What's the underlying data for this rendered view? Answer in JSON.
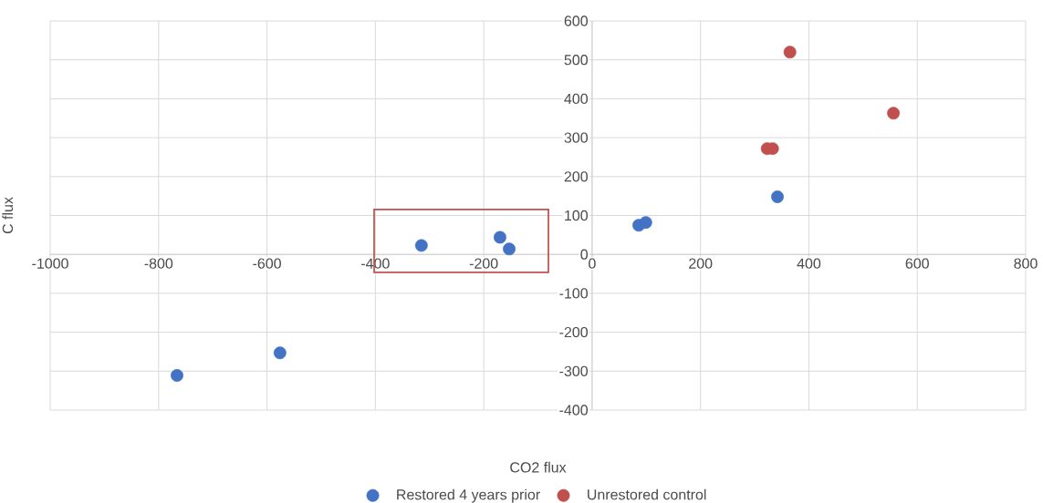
{
  "chart_data": {
    "type": "scatter",
    "xlabel": "CO2 flux",
    "ylabel": "C flux",
    "series": [
      {
        "name": "Restored 4 years prior",
        "color": "#4472c4",
        "x": [
          -766,
          -576,
          -315,
          -170,
          -153,
          86,
          99,
          342
        ],
        "values": [
          -311,
          -253,
          23,
          44,
          14,
          75,
          82,
          148
        ]
      },
      {
        "name": "Unrestored control",
        "color": "#c0504d",
        "x": [
          365,
          556,
          323,
          333
        ],
        "values": [
          520,
          363,
          272,
          272
        ]
      }
    ],
    "xlim": [
      -1000,
      800
    ],
    "ylim": [
      -400,
      600
    ],
    "xticks": [
      -1000,
      -800,
      -600,
      -400,
      -200,
      0,
      200,
      400,
      600,
      800
    ],
    "yticks": [
      -400,
      -300,
      -200,
      -100,
      0,
      100,
      200,
      300,
      400,
      500,
      600
    ],
    "grid": true,
    "legend": "bottom",
    "marker": "circle"
  }
}
